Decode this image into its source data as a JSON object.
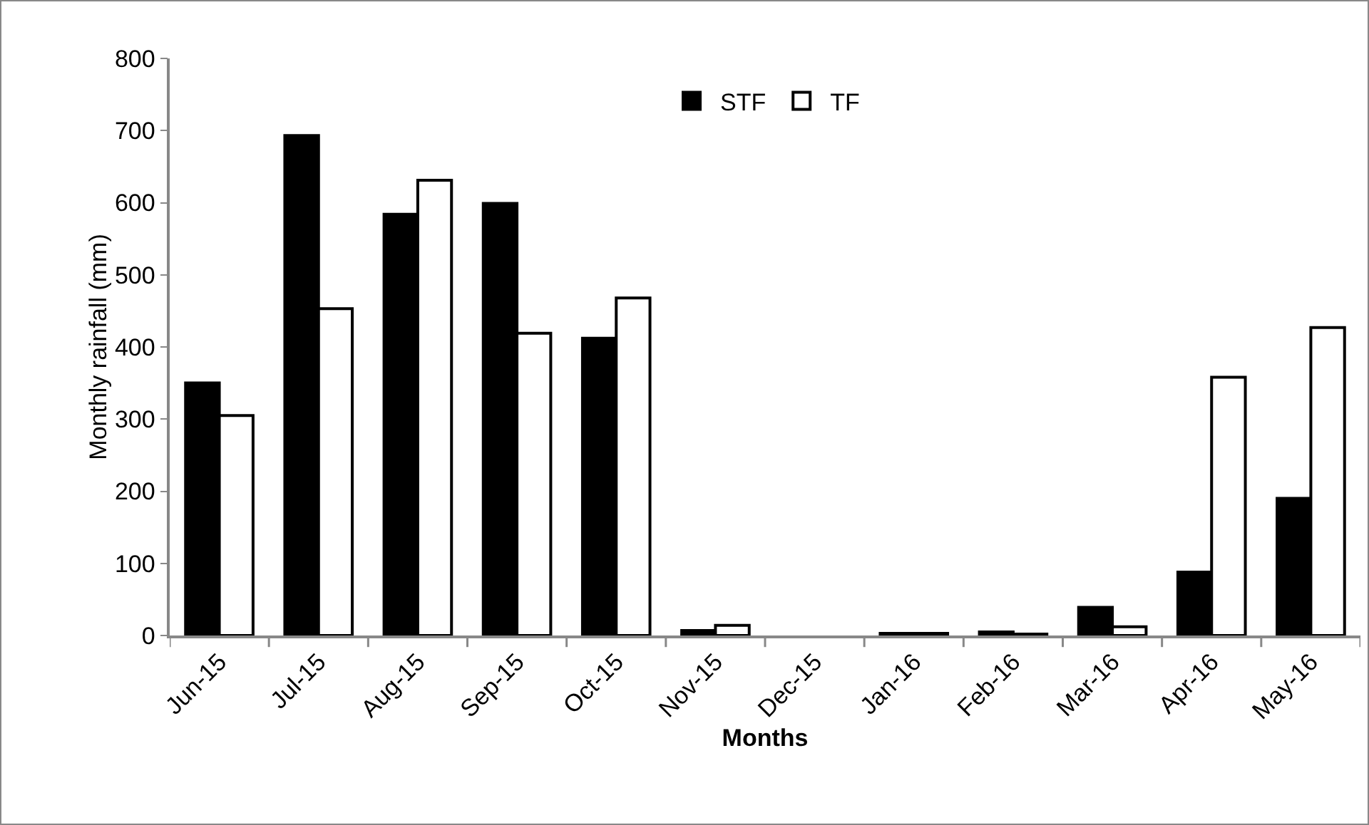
{
  "chart_data": {
    "type": "bar",
    "xlabel": "Months",
    "ylabel": "Monthly rainfall (mm)",
    "categories": [
      "Jun-15",
      "Jul-15",
      "Aug-15",
      "Sep-15",
      "Oct-15",
      "Nov-15",
      "Dec-15",
      "Jan-16",
      "Feb-16",
      "Mar-16",
      "Apr-16",
      "May-16"
    ],
    "series": [
      {
        "name": "STF",
        "color": "#000000",
        "values": [
          350,
          693,
          584,
          599,
          412,
          7,
          0,
          3,
          5,
          39,
          88,
          190
        ]
      },
      {
        "name": "TF",
        "color": "#ffffff",
        "values": [
          305,
          453,
          631,
          419,
          468,
          14,
          0,
          3,
          2,
          12,
          358,
          427
        ]
      }
    ],
    "ylim": [
      0,
      800
    ],
    "yticks": [
      0,
      100,
      200,
      300,
      400,
      500,
      600,
      700,
      800
    ],
    "grid": false,
    "legend": "top"
  }
}
